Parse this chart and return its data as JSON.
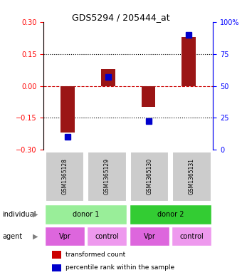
{
  "title": "GDS5294 / 205444_at",
  "samples": [
    "GSM1365128",
    "GSM1365129",
    "GSM1365130",
    "GSM1365131"
  ],
  "transformed_counts": [
    -0.22,
    0.08,
    -0.1,
    0.23
  ],
  "percentile_ranks": [
    10,
    57,
    22,
    90
  ],
  "ylim_left": [
    -0.3,
    0.3
  ],
  "ylim_right": [
    0,
    100
  ],
  "yticks_left": [
    -0.3,
    -0.15,
    0,
    0.15,
    0.3
  ],
  "yticks_right": [
    0,
    25,
    50,
    75,
    100
  ],
  "bar_color": "#9b1515",
  "dot_color": "#0000cc",
  "bar_width": 0.35,
  "agents": [
    "Vpr",
    "control",
    "Vpr",
    "control"
  ],
  "individual_colors": [
    "#99ee99",
    "#33cc33"
  ],
  "agent_colors": [
    "#dd66dd",
    "#ee99ee",
    "#dd66dd",
    "#ee99ee"
  ],
  "sample_bg_color": "#cccccc",
  "legend_bar_color": "#cc0000",
  "legend_dot_color": "#0000cc",
  "hline_zero_color": "#cc0000",
  "hline_dotted_color": "#000000"
}
